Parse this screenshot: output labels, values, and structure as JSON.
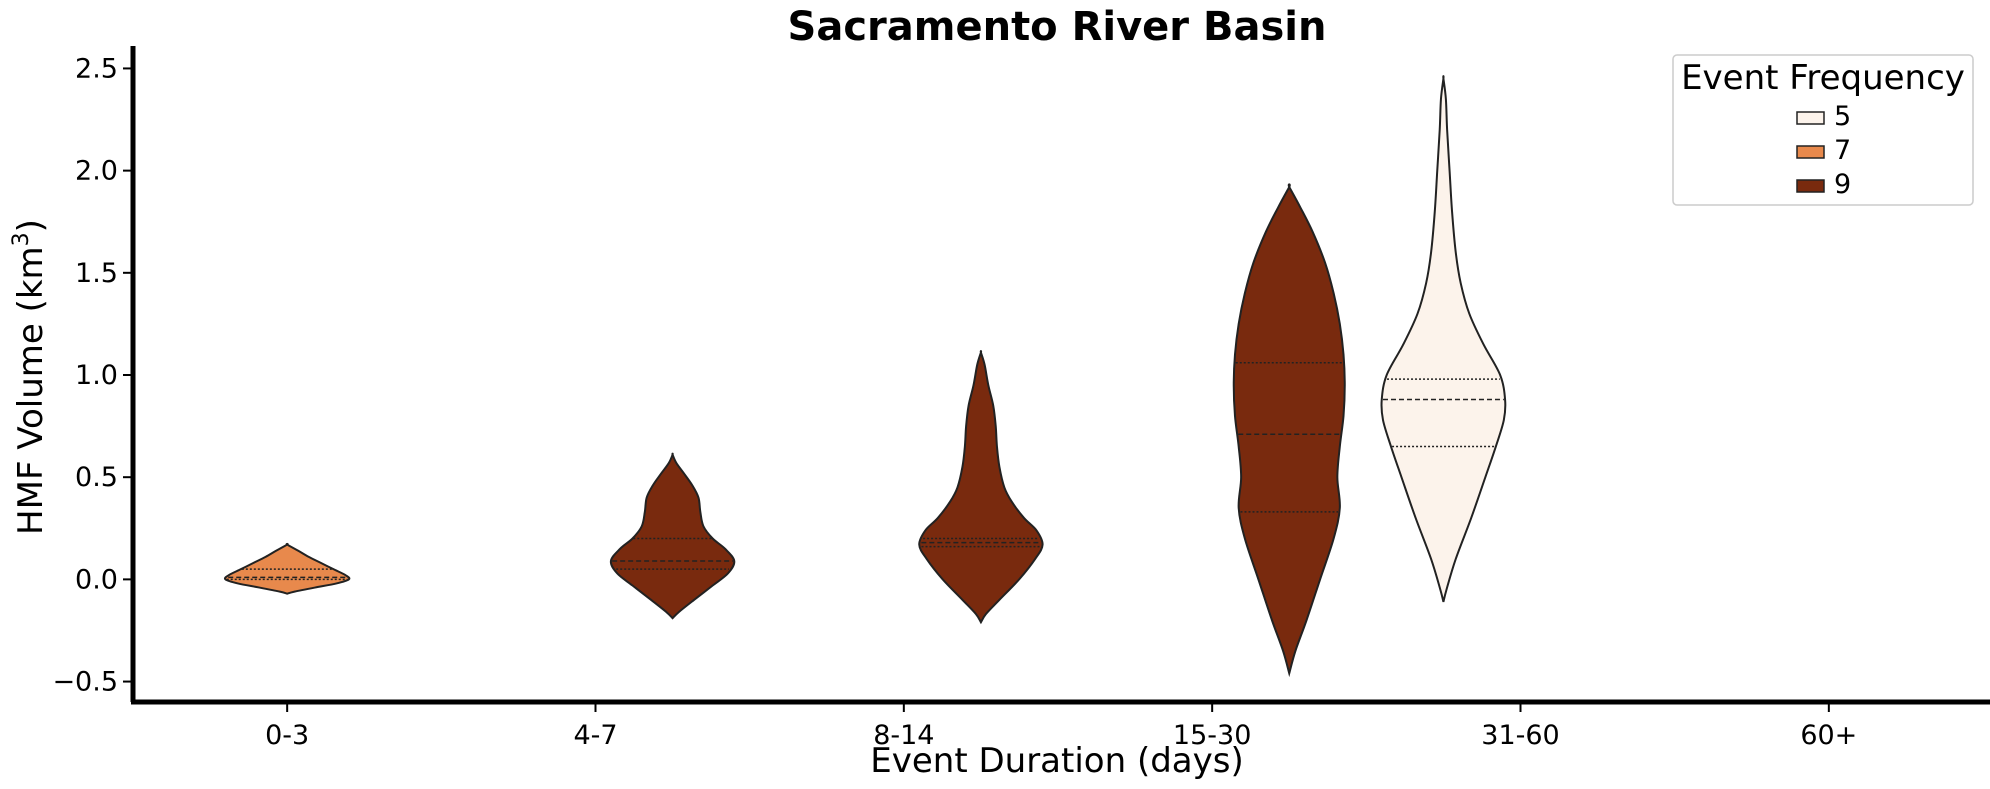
{
  "chart_data": {
    "type": "violin",
    "title": "Sacramento River Basin",
    "xlabel": "Event Duration (days)",
    "ylabel_main": "HMF Volume (km",
    "ylabel_sup": "3",
    "ylabel_close": ")",
    "categories": [
      "0-3",
      "4-7",
      "8-14",
      "15-30",
      "31-60",
      "60+"
    ],
    "ylim": [
      -0.6,
      2.6
    ],
    "yticks": [
      -0.5,
      0.0,
      0.5,
      1.0,
      1.5,
      2.0,
      2.5
    ],
    "ytick_labels": [
      "−0.5",
      "0.0",
      "0.5",
      "1.0",
      "1.5",
      "2.0",
      "2.5"
    ],
    "legend": {
      "title": "Event Frequency",
      "placement": "top-right",
      "entries": [
        {
          "label": "5",
          "color": "#fcf3eb"
        },
        {
          "label": "7",
          "color": "#e8894c"
        },
        {
          "label": "9",
          "color": "#792a0e"
        }
      ]
    },
    "violins": [
      {
        "category": "0-3",
        "frequency": "7",
        "color": "#e8894c",
        "offset": 0,
        "ymin": -0.07,
        "ymax": 0.17,
        "quartiles": [
          -0.0,
          0.01,
          0.05
        ],
        "profile": [
          [
            -0.07,
            0.0
          ],
          [
            -0.06,
            0.12
          ],
          [
            -0.04,
            0.45
          ],
          [
            -0.02,
            0.8
          ],
          [
            0.0,
            1.0
          ],
          [
            0.02,
            0.95
          ],
          [
            0.05,
            0.75
          ],
          [
            0.08,
            0.55
          ],
          [
            0.11,
            0.35
          ],
          [
            0.14,
            0.18
          ],
          [
            0.17,
            0.0
          ]
        ]
      },
      {
        "category": "4-7",
        "frequency": "9",
        "color": "#792a0e",
        "offset": 0.25,
        "ymin": -0.19,
        "ymax": 0.61,
        "quartiles": [
          0.05,
          0.09,
          0.2
        ],
        "profile": [
          [
            -0.19,
            0.0
          ],
          [
            -0.16,
            0.1
          ],
          [
            -0.1,
            0.35
          ],
          [
            -0.03,
            0.65
          ],
          [
            0.03,
            0.9
          ],
          [
            0.09,
            1.0
          ],
          [
            0.15,
            0.85
          ],
          [
            0.2,
            0.65
          ],
          [
            0.26,
            0.5
          ],
          [
            0.33,
            0.45
          ],
          [
            0.4,
            0.42
          ],
          [
            0.46,
            0.32
          ],
          [
            0.52,
            0.18
          ],
          [
            0.57,
            0.06
          ],
          [
            0.61,
            0.0
          ]
        ]
      },
      {
        "category": "8-14",
        "frequency": "9",
        "color": "#792a0e",
        "offset": 0.25,
        "ymin": -0.21,
        "ymax": 1.11,
        "quartiles": [
          0.16,
          0.18,
          0.2
        ],
        "profile": [
          [
            -0.21,
            0.0
          ],
          [
            -0.17,
            0.08
          ],
          [
            -0.1,
            0.3
          ],
          [
            0.0,
            0.62
          ],
          [
            0.1,
            0.88
          ],
          [
            0.17,
            1.0
          ],
          [
            0.24,
            0.9
          ],
          [
            0.3,
            0.7
          ],
          [
            0.38,
            0.5
          ],
          [
            0.45,
            0.38
          ],
          [
            0.55,
            0.3
          ],
          [
            0.65,
            0.26
          ],
          [
            0.75,
            0.24
          ],
          [
            0.85,
            0.2
          ],
          [
            0.95,
            0.12
          ],
          [
            1.05,
            0.06
          ],
          [
            1.11,
            0.0
          ]
        ]
      },
      {
        "category": "15-30",
        "frequency": "9",
        "color": "#792a0e",
        "offset": 0.25,
        "ymin": -0.46,
        "ymax": 1.92,
        "quartiles": [
          0.33,
          0.71,
          1.06
        ],
        "profile": [
          [
            -0.46,
            0.0
          ],
          [
            -0.35,
            0.1
          ],
          [
            -0.2,
            0.28
          ],
          [
            0.0,
            0.5
          ],
          [
            0.2,
            0.72
          ],
          [
            0.35,
            0.82
          ],
          [
            0.5,
            0.78
          ],
          [
            0.65,
            0.82
          ],
          [
            0.8,
            0.88
          ],
          [
            0.95,
            0.9
          ],
          [
            1.1,
            0.88
          ],
          [
            1.25,
            0.82
          ],
          [
            1.4,
            0.72
          ],
          [
            1.55,
            0.58
          ],
          [
            1.7,
            0.38
          ],
          [
            1.82,
            0.18
          ],
          [
            1.92,
            0.0
          ]
        ]
      },
      {
        "category": "31-60",
        "frequency": "5",
        "color": "#fcf3eb",
        "offset": -0.25,
        "ymin": -0.11,
        "ymax": 2.45,
        "quartiles": [
          0.65,
          0.88,
          0.98
        ],
        "profile": [
          [
            -0.11,
            0.0
          ],
          [
            -0.05,
            0.05
          ],
          [
            0.1,
            0.2
          ],
          [
            0.3,
            0.45
          ],
          [
            0.5,
            0.68
          ],
          [
            0.65,
            0.85
          ],
          [
            0.78,
            0.98
          ],
          [
            0.88,
            1.0
          ],
          [
            1.0,
            0.92
          ],
          [
            1.15,
            0.65
          ],
          [
            1.3,
            0.42
          ],
          [
            1.45,
            0.28
          ],
          [
            1.6,
            0.2
          ],
          [
            1.8,
            0.14
          ],
          [
            2.0,
            0.1
          ],
          [
            2.2,
            0.06
          ],
          [
            2.35,
            0.04
          ],
          [
            2.45,
            0.0
          ]
        ]
      }
    ]
  }
}
